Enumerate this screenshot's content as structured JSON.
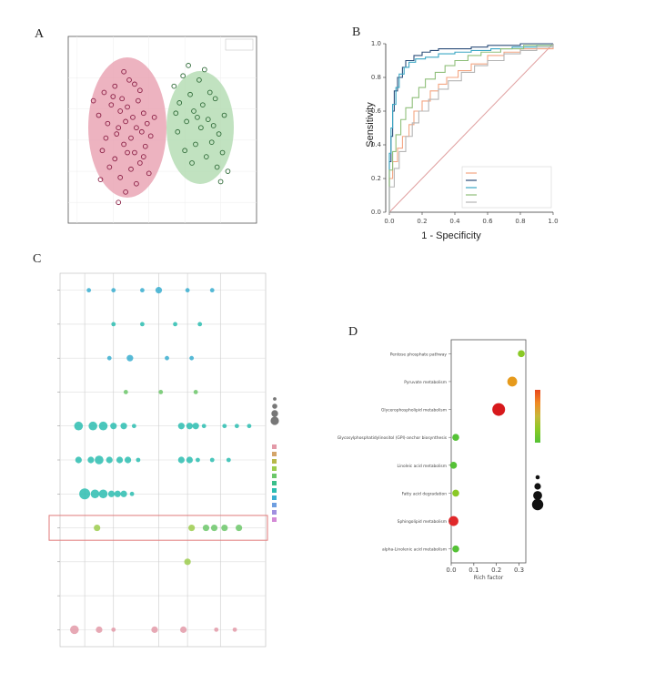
{
  "panels": {
    "a": {
      "letter": "A"
    },
    "b": {
      "letter": "B"
    },
    "c": {
      "letter": "C"
    },
    "d": {
      "letter": "D"
    }
  },
  "chart_data": [
    {
      "type": "scatter",
      "panel": "A",
      "groups": [
        {
          "color": "#e8a0b0",
          "point_color": "#8a1f45"
        },
        {
          "color": "#b2dbb0",
          "point_color": "#2f6b38"
        }
      ],
      "series": [
        {
          "values": [
            [
              -3.1,
              1.9
            ],
            [
              -2.8,
              1.2
            ],
            [
              -2.5,
              2.3
            ],
            [
              -2.3,
              0.8
            ],
            [
              -2.1,
              1.7
            ],
            [
              -1.9,
              2.6
            ],
            [
              -1.8,
              0.3
            ],
            [
              -1.6,
              1.4
            ],
            [
              -1.5,
              2.0
            ],
            [
              -1.4,
              -0.2
            ],
            [
              -1.3,
              0.9
            ],
            [
              -1.2,
              1.6
            ],
            [
              -1.1,
              2.9
            ],
            [
              -1.0,
              0.1
            ],
            [
              -0.9,
              1.1
            ],
            [
              -0.8,
              -0.6
            ],
            [
              -0.7,
              0.6
            ],
            [
              -0.6,
              1.9
            ],
            [
              -0.5,
              -1.1
            ],
            [
              -0.4,
              0.4
            ],
            [
              -0.3,
              1.3
            ],
            [
              -0.2,
              -0.3
            ],
            [
              -0.1,
              0.8
            ],
            [
              0.0,
              -1.6
            ],
            [
              0.1,
              0.2
            ],
            [
              -2.6,
              -0.5
            ],
            [
              -2.2,
              -1.3
            ],
            [
              -1.9,
              -0.9
            ],
            [
              -1.6,
              -1.8
            ],
            [
              -1.3,
              -2.5
            ],
            [
              -1.0,
              -1.4
            ],
            [
              -0.7,
              -2.1
            ],
            [
              -2.4,
              0.1
            ],
            [
              -1.7,
              0.6
            ],
            [
              -0.5,
              2.4
            ],
            [
              0.3,
              1.1
            ],
            [
              -0.3,
              -0.8
            ],
            [
              -1.2,
              -0.6
            ],
            [
              -2.0,
              2.1
            ],
            [
              -1.4,
              3.3
            ],
            [
              -0.8,
              2.7
            ],
            [
              -1.7,
              -3.0
            ],
            [
              -2.7,
              -1.9
            ]
          ]
        },
        {
          "values": [
            [
              1.4,
              2.6
            ],
            [
              1.7,
              1.8
            ],
            [
              1.9,
              3.1
            ],
            [
              2.1,
              0.9
            ],
            [
              2.3,
              2.2
            ],
            [
              2.5,
              1.4
            ],
            [
              2.6,
              -0.2
            ],
            [
              2.8,
              2.9
            ],
            [
              2.9,
              0.6
            ],
            [
              3.0,
              1.7
            ],
            [
              3.2,
              -0.8
            ],
            [
              3.3,
              1.0
            ],
            [
              3.4,
              2.3
            ],
            [
              3.5,
              -0.1
            ],
            [
              3.6,
              0.7
            ],
            [
              3.8,
              -1.3
            ],
            [
              3.9,
              0.3
            ],
            [
              4.1,
              -0.6
            ],
            [
              4.2,
              1.2
            ],
            [
              4.4,
              -1.5
            ],
            [
              1.6,
              0.4
            ],
            [
              2.0,
              -0.5
            ],
            [
              2.4,
              -1.1
            ],
            [
              3.1,
              3.4
            ],
            [
              2.7,
              1.1
            ],
            [
              3.7,
              2.0
            ],
            [
              1.5,
              1.3
            ],
            [
              4.0,
              -2.0
            ],
            [
              2.2,
              3.6
            ]
          ]
        }
      ],
      "xlim": [
        -4.5,
        6
      ],
      "ylim": [
        -4,
        5
      ]
    },
    {
      "type": "line",
      "panel": "B",
      "xlabel": "1 - Specificity",
      "ylabel": "Sensitivity",
      "xlim": [
        0,
        1
      ],
      "ylim": [
        0,
        1
      ],
      "x_ticks": [
        "0.0",
        "0.2",
        "0.4",
        "0.6",
        "0.8",
        "1.0"
      ],
      "y_ticks": [
        "0.0",
        "0.2",
        "0.4",
        "0.6",
        "0.8",
        "1.0"
      ],
      "diagonal_color": "#e0a0a0",
      "series": [
        {
          "color": "#f4a582",
          "x": [
            0,
            0,
            0.02,
            0.05,
            0.08,
            0.12,
            0.15,
            0.2,
            0.25,
            0.3,
            0.35,
            0.42,
            0.5,
            0.6,
            0.7,
            0.8,
            1.0
          ],
          "y": [
            0,
            0.2,
            0.3,
            0.38,
            0.45,
            0.52,
            0.6,
            0.66,
            0.72,
            0.76,
            0.8,
            0.84,
            0.88,
            0.93,
            0.95,
            0.97,
            1.0
          ]
        },
        {
          "color": "#2c4e7a",
          "x": [
            0,
            0,
            0.01,
            0.02,
            0.03,
            0.05,
            0.08,
            0.1,
            0.15,
            0.2,
            0.25,
            0.3,
            0.4,
            0.5,
            0.6,
            0.8,
            1.0
          ],
          "y": [
            0,
            0.3,
            0.45,
            0.6,
            0.72,
            0.8,
            0.86,
            0.9,
            0.93,
            0.95,
            0.96,
            0.97,
            0.97,
            0.98,
            0.99,
            1.0,
            1.0
          ]
        },
        {
          "color": "#3aa6c4",
          "x": [
            0,
            0,
            0.01,
            0.02,
            0.04,
            0.06,
            0.09,
            0.12,
            0.16,
            0.22,
            0.3,
            0.4,
            0.5,
            0.62,
            0.75,
            0.9,
            1.0
          ],
          "y": [
            0,
            0.35,
            0.5,
            0.64,
            0.74,
            0.82,
            0.86,
            0.89,
            0.91,
            0.92,
            0.94,
            0.95,
            0.96,
            0.97,
            0.98,
            0.99,
            1.0
          ]
        },
        {
          "color": "#8fbf7a",
          "x": [
            0,
            0,
            0.02,
            0.04,
            0.07,
            0.1,
            0.14,
            0.18,
            0.22,
            0.28,
            0.34,
            0.4,
            0.48,
            0.56,
            0.68,
            0.82,
            1.0
          ],
          "y": [
            0,
            0.25,
            0.36,
            0.46,
            0.55,
            0.62,
            0.68,
            0.74,
            0.79,
            0.83,
            0.87,
            0.9,
            0.93,
            0.95,
            0.97,
            0.99,
            1.0
          ]
        },
        {
          "color": "#b5b5b5",
          "x": [
            0,
            0,
            0.03,
            0.06,
            0.1,
            0.14,
            0.18,
            0.24,
            0.3,
            0.36,
            0.44,
            0.52,
            0.6,
            0.7,
            0.8,
            0.9,
            1.0
          ],
          "y": [
            0,
            0.15,
            0.26,
            0.36,
            0.45,
            0.53,
            0.6,
            0.67,
            0.73,
            0.78,
            0.83,
            0.87,
            0.9,
            0.94,
            0.96,
            0.98,
            1.0
          ]
        }
      ]
    },
    {
      "type": "scatter",
      "panel": "C",
      "rows": 11,
      "xlim": [
        0,
        100
      ],
      "highlight_row": 7,
      "vgrid_x": [
        12,
        26,
        48,
        62,
        78
      ],
      "size_legend": [
        1,
        2,
        3,
        4
      ],
      "color_legend": [
        "#e39aa8",
        "#d4a56a",
        "#b8b84a",
        "#9ccd4e",
        "#6cc76a",
        "#3bbf8b",
        "#2cbdb0",
        "#3aaed0",
        "#6e9ee0",
        "#a08fe0",
        "#d48ad6"
      ],
      "points": [
        [
          0,
          14,
          1,
          "#3aaed0"
        ],
        [
          0,
          26,
          1,
          "#3aaed0"
        ],
        [
          0,
          40,
          1,
          "#3aaed0"
        ],
        [
          0,
          48,
          2,
          "#3aaed0"
        ],
        [
          0,
          62,
          1,
          "#3aaed0"
        ],
        [
          0,
          74,
          1,
          "#3aaed0"
        ],
        [
          1,
          26,
          1,
          "#2cbdb0"
        ],
        [
          1,
          40,
          1,
          "#2cbdb0"
        ],
        [
          1,
          56,
          1,
          "#2cbdb0"
        ],
        [
          1,
          68,
          1,
          "#2cbdb0"
        ],
        [
          2,
          24,
          1,
          "#3aaed0"
        ],
        [
          2,
          34,
          2,
          "#3aaed0"
        ],
        [
          2,
          52,
          1,
          "#3aaed0"
        ],
        [
          2,
          64,
          1,
          "#3aaed0"
        ],
        [
          3,
          32,
          1,
          "#6cc76a"
        ],
        [
          3,
          49,
          1,
          "#6cc76a"
        ],
        [
          3,
          66,
          1,
          "#6cc76a"
        ],
        [
          4,
          9,
          3,
          "#2cbdb0"
        ],
        [
          4,
          16,
          3,
          "#2cbdb0"
        ],
        [
          4,
          21,
          3,
          "#2cbdb0"
        ],
        [
          4,
          26,
          2,
          "#2cbdb0"
        ],
        [
          4,
          31,
          2,
          "#2cbdb0"
        ],
        [
          4,
          36,
          1,
          "#2cbdb0"
        ],
        [
          4,
          59,
          2,
          "#2cbdb0"
        ],
        [
          4,
          63,
          2,
          "#2cbdb0"
        ],
        [
          4,
          66,
          2,
          "#2cbdb0"
        ],
        [
          4,
          70,
          1,
          "#2cbdb0"
        ],
        [
          4,
          80,
          1,
          "#2cbdb0"
        ],
        [
          4,
          86,
          1,
          "#2cbdb0"
        ],
        [
          4,
          92,
          1,
          "#2cbdb0"
        ],
        [
          5,
          9,
          2,
          "#2cbdb0"
        ],
        [
          5,
          15,
          2,
          "#2cbdb0"
        ],
        [
          5,
          19,
          3,
          "#2cbdb0"
        ],
        [
          5,
          24,
          2,
          "#2cbdb0"
        ],
        [
          5,
          29,
          2,
          "#2cbdb0"
        ],
        [
          5,
          33,
          2,
          "#2cbdb0"
        ],
        [
          5,
          38,
          1,
          "#2cbdb0"
        ],
        [
          5,
          59,
          2,
          "#2cbdb0"
        ],
        [
          5,
          63,
          2,
          "#2cbdb0"
        ],
        [
          5,
          67,
          1,
          "#2cbdb0"
        ],
        [
          5,
          74,
          1,
          "#2cbdb0"
        ],
        [
          5,
          82,
          1,
          "#2cbdb0"
        ],
        [
          6,
          12,
          4,
          "#2cbdb0"
        ],
        [
          6,
          17,
          3,
          "#2cbdb0"
        ],
        [
          6,
          21,
          3,
          "#2cbdb0"
        ],
        [
          6,
          25,
          2,
          "#2cbdb0"
        ],
        [
          6,
          28,
          2,
          "#2cbdb0"
        ],
        [
          6,
          31,
          2,
          "#2cbdb0"
        ],
        [
          6,
          35,
          1,
          "#2cbdb0"
        ],
        [
          7,
          18,
          2,
          "#9ccd4e"
        ],
        [
          7,
          64,
          2,
          "#9ccd4e"
        ],
        [
          7,
          71,
          2,
          "#6cc76a"
        ],
        [
          7,
          75,
          2,
          "#6cc76a"
        ],
        [
          7,
          80,
          2,
          "#6cc76a"
        ],
        [
          7,
          87,
          2,
          "#6cc76a"
        ],
        [
          8,
          62,
          2,
          "#9ccd4e"
        ],
        [
          10,
          7,
          3,
          "#e39aa8"
        ],
        [
          10,
          19,
          2,
          "#e39aa8"
        ],
        [
          10,
          26,
          1,
          "#e39aa8"
        ],
        [
          10,
          46,
          2,
          "#e39aa8"
        ],
        [
          10,
          60,
          2,
          "#e39aa8"
        ],
        [
          10,
          76,
          1,
          "#e39aa8"
        ],
        [
          10,
          85,
          1,
          "#e39aa8"
        ]
      ]
    },
    {
      "type": "scatter",
      "panel": "D",
      "xlabel": "Rich factor",
      "xlim": [
        0,
        0.33
      ],
      "x_ticks": [
        "0.0",
        "0.1",
        "0.2",
        "0.3"
      ],
      "categories": [
        "Pentose phosphate pathway",
        "Pyruvate metabolism",
        "Glycerophospholipid metabolism",
        "Glycosylphosphatidylinositol (GPI)-anchor biosynthesis",
        "Linoleic acid metabolism",
        "Fatty acid degradation",
        "Sphingolipid metabolism",
        "alpha-Linolenic acid metabolism"
      ],
      "values": [
        0.31,
        0.27,
        0.21,
        0.02,
        0.01,
        0.02,
        0.01,
        0.02
      ],
      "counts": [
        1,
        2,
        3,
        1,
        1,
        1,
        2,
        1
      ],
      "colors": [
        "#8ac926",
        "#e69a1c",
        "#d7191c",
        "#55c236",
        "#55c236",
        "#8ac926",
        "#e0282a",
        "#55c236"
      ],
      "gradient_colors": [
        "#e8471d",
        "#f08a24",
        "#c6b83a",
        "#8ac926",
        "#55c236"
      ],
      "size_legend": [
        1,
        2,
        3,
        4
      ]
    }
  ]
}
